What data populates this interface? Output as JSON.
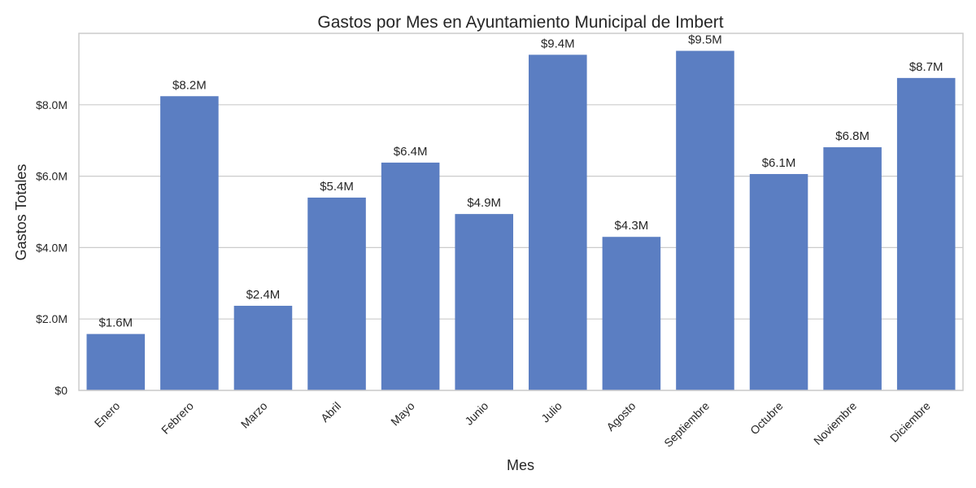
{
  "chart_data": {
    "type": "bar",
    "title": "Gastos por Mes en Ayuntamiento Municipal de Imbert",
    "xlabel": "Mes",
    "ylabel": "Gastos Totales",
    "categories": [
      "Enero",
      "Febrero",
      "Marzo",
      "Abril",
      "Mayo",
      "Junio",
      "Julio",
      "Agosto",
      "Septiembre",
      "Octubre",
      "Noviembre",
      "Diciembre"
    ],
    "values": [
      1.58,
      8.24,
      2.37,
      5.4,
      6.38,
      4.94,
      9.4,
      4.3,
      9.51,
      6.06,
      6.81,
      8.75
    ],
    "value_labels": [
      "$1.6M",
      "$8.2M",
      "$2.4M",
      "$5.4M",
      "$6.4M",
      "$4.9M",
      "$9.4M",
      "$4.3M",
      "$9.5M",
      "$6.1M",
      "$6.8M",
      "$8.7M"
    ],
    "y_ticks": [
      0,
      2,
      4,
      6,
      8
    ],
    "y_tick_labels": [
      "$0",
      "$2.0M",
      "$4.0M",
      "$6.0M",
      "$8.0M"
    ],
    "unit": "millones de dólares",
    "ylim": [
      0,
      10
    ],
    "grid": "horizontal",
    "legend": "none",
    "colors": {
      "bar": "#5b7ec2",
      "grid": "#cccccc",
      "text": "#262626"
    }
  }
}
